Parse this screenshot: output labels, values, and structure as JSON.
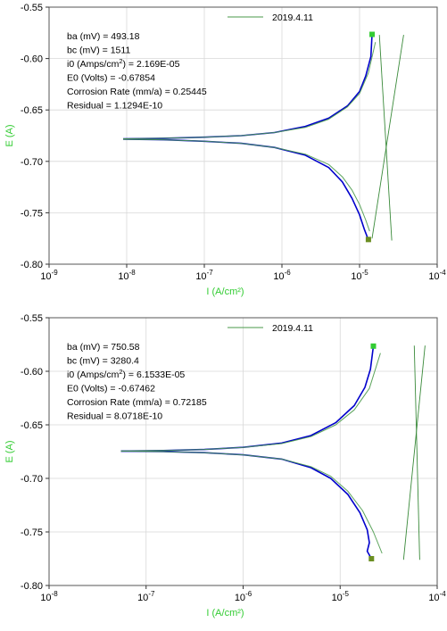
{
  "colors": {
    "measured": "#0000cc",
    "fit": "#4a9a4a",
    "tafel": "#3a8a3a",
    "marker_start": "#33cc33",
    "marker_end": "#6b8e23",
    "axis_label": "#33cc33",
    "grid": "#d8d8d8"
  },
  "chart_data": [
    {
      "type": "line",
      "title": "",
      "xlabel": "I (A/cm²)",
      "ylabel": "E (A)",
      "x_scale": "log",
      "xlim": [
        1e-09,
        0.0001
      ],
      "ylim": [
        -0.8,
        -0.55
      ],
      "x_ticks": [
        {
          "value": 1e-09,
          "base": "10",
          "exp": "-9"
        },
        {
          "value": 1e-08,
          "base": "10",
          "exp": "-8"
        },
        {
          "value": 1e-07,
          "base": "10",
          "exp": "-7"
        },
        {
          "value": 1e-06,
          "base": "10",
          "exp": "-6"
        },
        {
          "value": 1e-05,
          "base": "10",
          "exp": "-5"
        },
        {
          "value": 0.0001,
          "base": "10",
          "exp": "-4"
        }
      ],
      "y_ticks": [
        {
          "value": -0.55,
          "label": "-0.55"
        },
        {
          "value": -0.6,
          "label": "-0.60"
        },
        {
          "value": -0.65,
          "label": "-0.65"
        },
        {
          "value": -0.7,
          "label": "-0.70"
        },
        {
          "value": -0.75,
          "label": "-0.75"
        },
        {
          "value": -0.8,
          "label": "-0.80"
        }
      ],
      "grid": true,
      "legend": {
        "position": "top-right",
        "entries": [
          "2019.4.11"
        ]
      },
      "info_lines": [
        {
          "pre": "ba (mV) = 493.18",
          "sup": "",
          "post": ""
        },
        {
          "pre": "bc (mV) = 1511",
          "sup": "",
          "post": ""
        },
        {
          "pre": "i0 (Amps/cm",
          "sup": "2",
          "post": ") = 2.169E-05"
        },
        {
          "pre": "E0 (Volts) = -0.67854",
          "sup": "",
          "post": ""
        },
        {
          "pre": "Corrosion Rate (mm/a) = 0.25445",
          "sup": "",
          "post": ""
        },
        {
          "pre": "Residual = 1.1294E-10",
          "sup": "",
          "post": ""
        }
      ],
      "series": [
        {
          "role": "measured-anodic",
          "x": [
            9e-09,
            3e-08,
            1e-07,
            3e-07,
            8e-07,
            2e-06,
            4e-06,
            7e-06,
            1e-05,
            1.2e-05,
            1.4e-05,
            1.45e-05
          ],
          "y": [
            -0.678,
            -0.6775,
            -0.6765,
            -0.675,
            -0.672,
            -0.666,
            -0.658,
            -0.646,
            -0.632,
            -0.617,
            -0.598,
            -0.5765
          ]
        },
        {
          "role": "measured-cathodic",
          "x": [
            9e-09,
            3e-08,
            1e-07,
            3e-07,
            8e-07,
            2e-06,
            4e-06,
            6e-06,
            8e-06,
            1e-05,
            1.15e-05,
            1.25e-05,
            1.3e-05
          ],
          "y": [
            -0.6785,
            -0.679,
            -0.6805,
            -0.6825,
            -0.6865,
            -0.694,
            -0.706,
            -0.72,
            -0.736,
            -0.752,
            -0.766,
            -0.773,
            -0.776
          ]
        },
        {
          "role": "fit-anodic",
          "x": [
            9e-09,
            3e-08,
            1e-07,
            3e-07,
            8e-07,
            2e-06,
            4e-06,
            7e-06,
            1e-05,
            1.3e-05,
            1.6e-05
          ],
          "y": [
            -0.678,
            -0.6775,
            -0.6765,
            -0.675,
            -0.672,
            -0.667,
            -0.659,
            -0.647,
            -0.634,
            -0.614,
            -0.584
          ]
        },
        {
          "role": "fit-cathodic",
          "x": [
            9e-09,
            3e-08,
            1e-07,
            3e-07,
            8e-07,
            2e-06,
            4e-06,
            6e-06,
            8e-06,
            1e-05,
            1.2e-05,
            1.35e-05
          ],
          "y": [
            -0.6785,
            -0.679,
            -0.6805,
            -0.6825,
            -0.6865,
            -0.693,
            -0.703,
            -0.715,
            -0.728,
            -0.742,
            -0.757,
            -0.768
          ]
        },
        {
          "role": "tafel-line",
          "x": [
            1.8e-05,
            2.6e-05
          ],
          "y": [
            -0.577,
            -0.777
          ]
        },
        {
          "role": "tafel-line",
          "x": [
            1.45e-05,
            3.7e-05
          ],
          "y": [
            -0.775,
            -0.577
          ]
        }
      ],
      "markers": [
        {
          "role": "start",
          "x": 1.45e-05,
          "y": -0.5765
        },
        {
          "role": "end",
          "x": 1.3e-05,
          "y": -0.776
        }
      ]
    },
    {
      "type": "line",
      "title": "",
      "xlabel": "I (A/cm²)",
      "ylabel": "E (A)",
      "x_scale": "log",
      "xlim": [
        1e-08,
        0.0001
      ],
      "ylim": [
        -0.8,
        -0.55
      ],
      "x_ticks": [
        {
          "value": 1e-08,
          "base": "10",
          "exp": "-8"
        },
        {
          "value": 1e-07,
          "base": "10",
          "exp": "-7"
        },
        {
          "value": 1e-06,
          "base": "10",
          "exp": "-6"
        },
        {
          "value": 1e-05,
          "base": "10",
          "exp": "-5"
        },
        {
          "value": 0.0001,
          "base": "10",
          "exp": "-4"
        }
      ],
      "y_ticks": [
        {
          "value": -0.55,
          "label": "-0.55"
        },
        {
          "value": -0.6,
          "label": "-0.60"
        },
        {
          "value": -0.65,
          "label": "-0.65"
        },
        {
          "value": -0.7,
          "label": "-0.70"
        },
        {
          "value": -0.75,
          "label": "-0.75"
        },
        {
          "value": -0.8,
          "label": "-0.80"
        }
      ],
      "grid": true,
      "legend": {
        "position": "top-right",
        "entries": [
          "2019.4.11"
        ]
      },
      "info_lines": [
        {
          "pre": "ba (mV) = 750.58",
          "sup": "",
          "post": ""
        },
        {
          "pre": "bc (mV) = 3280.4",
          "sup": "",
          "post": ""
        },
        {
          "pre": "i0 (Amps/cm",
          "sup": "2",
          "post": ") = 6.1533E-05"
        },
        {
          "pre": "E0 (Volts) = -0.67462",
          "sup": "",
          "post": ""
        },
        {
          "pre": "Corrosion Rate (mm/a) = 0.72185",
          "sup": "",
          "post": ""
        },
        {
          "pre": "Residual = 8.0718E-10",
          "sup": "",
          "post": ""
        }
      ],
      "series": [
        {
          "role": "measured-anodic",
          "x": [
            5.5e-08,
            1.5e-07,
            4e-07,
            1e-06,
            2.5e-06,
            5e-06,
            9e-06,
            1.4e-05,
            1.8e-05,
            2.05e-05,
            2.2e-05
          ],
          "y": [
            -0.6745,
            -0.674,
            -0.673,
            -0.671,
            -0.667,
            -0.66,
            -0.648,
            -0.632,
            -0.615,
            -0.598,
            -0.5765
          ]
        },
        {
          "role": "measured-cathodic",
          "x": [
            5.5e-08,
            1.5e-07,
            4e-07,
            1e-06,
            2.5e-06,
            5e-06,
            8e-06,
            1.2e-05,
            1.6e-05,
            1.9e-05,
            2e-05,
            1.9e-05,
            2.1e-05
          ],
          "y": [
            -0.6745,
            -0.675,
            -0.676,
            -0.678,
            -0.682,
            -0.69,
            -0.7,
            -0.715,
            -0.732,
            -0.748,
            -0.76,
            -0.768,
            -0.775
          ]
        },
        {
          "role": "fit-anodic",
          "x": [
            5.5e-08,
            1.5e-07,
            4e-07,
            1e-06,
            2.5e-06,
            5e-06,
            9e-06,
            1.4e-05,
            2e-05,
            2.6e-05
          ],
          "y": [
            -0.6745,
            -0.674,
            -0.673,
            -0.671,
            -0.6675,
            -0.661,
            -0.65,
            -0.636,
            -0.616,
            -0.583
          ]
        },
        {
          "role": "fit-cathodic",
          "x": [
            5.5e-08,
            1.5e-07,
            4e-07,
            1e-06,
            2.5e-06,
            5e-06,
            8e-06,
            1.2e-05,
            1.7e-05,
            2.2e-05,
            2.7e-05
          ],
          "y": [
            -0.6745,
            -0.675,
            -0.676,
            -0.678,
            -0.682,
            -0.689,
            -0.698,
            -0.712,
            -0.73,
            -0.75,
            -0.77
          ]
        },
        {
          "role": "tafel-line",
          "x": [
            4.5e-05,
            7.5e-05
          ],
          "y": [
            -0.776,
            -0.576
          ]
        },
        {
          "role": "tafel-line",
          "x": [
            5.8e-05,
            6.6e-05
          ],
          "y": [
            -0.576,
            -0.776
          ]
        }
      ],
      "markers": [
        {
          "role": "start",
          "x": 2.2e-05,
          "y": -0.5765
        },
        {
          "role": "end",
          "x": 2.1e-05,
          "y": -0.775
        }
      ]
    }
  ]
}
